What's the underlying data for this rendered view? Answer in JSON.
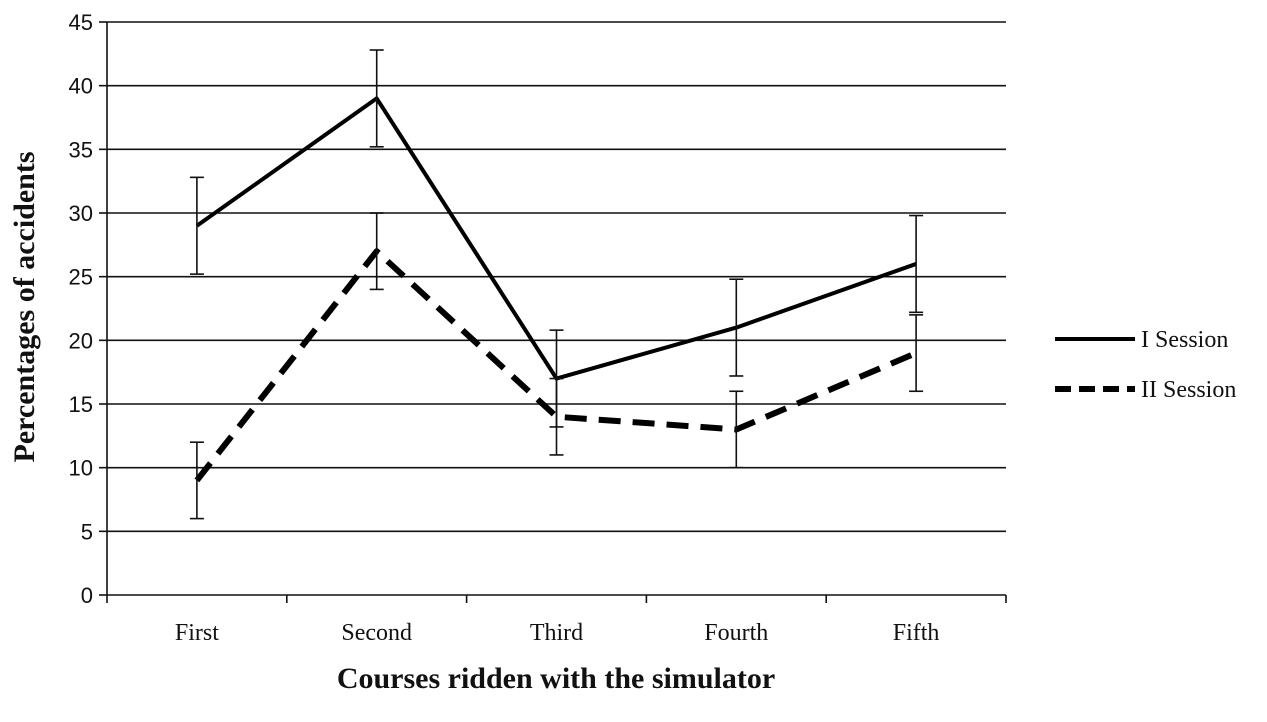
{
  "chart_data": {
    "type": "line",
    "xlabel": "Courses ridden with the simulator",
    "ylabel": "Percentages of accidents",
    "categories": [
      "First",
      "Second",
      "Third",
      "Fourth",
      "Fifth"
    ],
    "ylim": [
      0,
      45
    ],
    "yticks": [
      0,
      5,
      10,
      15,
      20,
      25,
      30,
      35,
      40,
      45
    ],
    "grid": true,
    "legend_position": "right",
    "series": [
      {
        "name": "I Session",
        "style": "solid",
        "color": "#000000",
        "values": [
          29,
          39,
          17,
          21,
          26
        ],
        "error": [
          3.8,
          3.8,
          3.8,
          3.8,
          3.8
        ]
      },
      {
        "name": "II Session",
        "style": "dashed",
        "color": "#000000",
        "values": [
          9,
          27,
          14,
          13,
          19
        ],
        "error": [
          3.0,
          3.0,
          3.0,
          3.0,
          3.0
        ]
      }
    ]
  }
}
